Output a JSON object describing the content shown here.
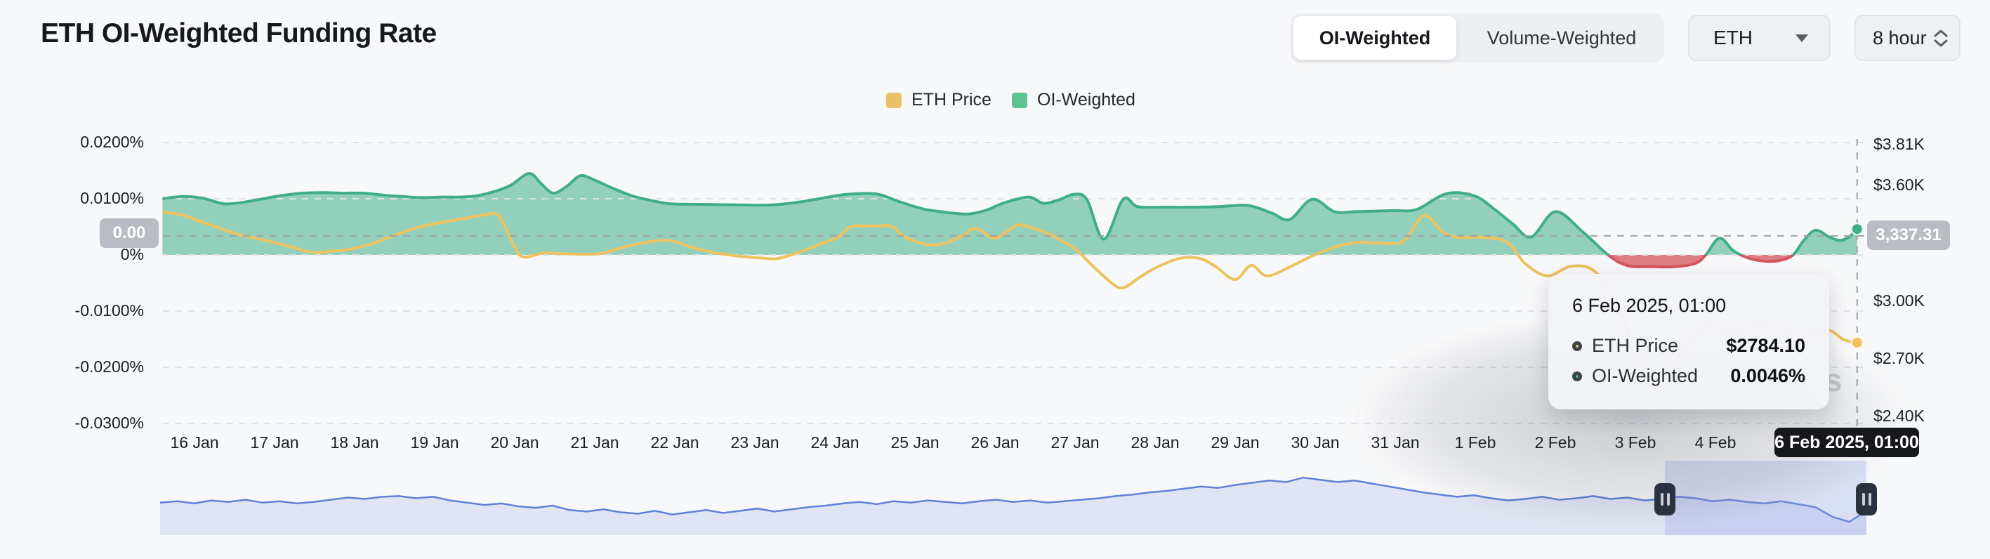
{
  "header": {
    "title": "ETH OI-Weighted Funding Rate"
  },
  "controls": {
    "mode_toggle": {
      "active_label": "OI-Weighted",
      "inactive_label": "Volume-Weighted"
    },
    "coin_select": {
      "value": "ETH"
    },
    "interval_select": {
      "value": "8 hour"
    }
  },
  "legend": [
    {
      "label": "ETH Price",
      "color": "#e9c164"
    },
    {
      "label": "OI-Weighted",
      "color": "#5ec391"
    }
  ],
  "axis_badges": {
    "left": "0.00",
    "right": "3,337.31"
  },
  "axis_pointer_label": "6 Feb 2025, 01:00",
  "tooltip": {
    "title": "6 Feb 2025, 01:00",
    "rows": [
      {
        "label": "ETH Price",
        "value": "$2784.10",
        "color": "#e9c164"
      },
      {
        "label": "OI-Weighted",
        "value": "0.0046%",
        "color": "#4db58d"
      }
    ]
  },
  "watermark_visible_text": "s",
  "chart_data": {
    "type": "area",
    "title": "ETH OI-Weighted Funding Rate",
    "legend_position": "top-center",
    "grid": "horizontal-dashed",
    "left_axis": {
      "unit": "%",
      "ticks": [
        "0.0200%",
        "0.0100%",
        "0%",
        "-0.0100%",
        "-0.0200%",
        "-0.0300%"
      ],
      "values": [
        0.02,
        0.01,
        0,
        -0.01,
        -0.02,
        -0.03
      ]
    },
    "right_axis": {
      "unit": "$",
      "ticks": [
        "$3.81K",
        "$3.60K",
        "$3.00K",
        "$2.70K",
        "$2.40K"
      ],
      "values": [
        3810,
        3600,
        3000,
        2700,
        2400
      ]
    },
    "x_ticks": [
      "16 Jan",
      "17 Jan",
      "18 Jan",
      "19 Jan",
      "20 Jan",
      "21 Jan",
      "22 Jan",
      "23 Jan",
      "24 Jan",
      "25 Jan",
      "26 Jan",
      "27 Jan",
      "28 Jan",
      "29 Jan",
      "30 Jan",
      "31 Jan",
      "1 Feb",
      "2 Feb",
      "3 Feb",
      "4 Feb"
    ],
    "series": [
      {
        "name": "OI-Weighted",
        "type": "area",
        "axis": "left",
        "unit": "%",
        "color_positive": "#3fae88",
        "fill_positive": "rgba(63,174,136,0.55)",
        "color_negative": "#d4575d",
        "fill_negative": "rgba(213,86,92,0.75)",
        "points": [
          [
            -0.4,
            0.01
          ],
          [
            -0.15,
            0.0104
          ],
          [
            0.1,
            0.0101
          ],
          [
            0.37,
            0.0091
          ],
          [
            0.62,
            0.0094
          ],
          [
            0.86,
            0.01
          ],
          [
            1.1,
            0.0106
          ],
          [
            1.35,
            0.011
          ],
          [
            1.6,
            0.0111
          ],
          [
            1.85,
            0.011
          ],
          [
            2.1,
            0.011
          ],
          [
            2.39,
            0.0106
          ],
          [
            2.6,
            0.0104
          ],
          [
            2.82,
            0.0102
          ],
          [
            3.1,
            0.0103
          ],
          [
            3.3,
            0.0103
          ],
          [
            3.52,
            0.0105
          ],
          [
            3.75,
            0.0113
          ],
          [
            3.95,
            0.0124
          ],
          [
            4.18,
            0.0145
          ],
          [
            4.33,
            0.0127
          ],
          [
            4.48,
            0.011
          ],
          [
            4.65,
            0.0122
          ],
          [
            4.82,
            0.0141
          ],
          [
            5.0,
            0.0133
          ],
          [
            5.22,
            0.0119
          ],
          [
            5.47,
            0.0105
          ],
          [
            5.7,
            0.0097
          ],
          [
            5.95,
            0.0091
          ],
          [
            6.34,
            0.009
          ],
          [
            6.8,
            0.0089
          ],
          [
            7.22,
            0.0089
          ],
          [
            7.6,
            0.0095
          ],
          [
            8.04,
            0.0106
          ],
          [
            8.3,
            0.0109
          ],
          [
            8.54,
            0.0108
          ],
          [
            8.8,
            0.0095
          ],
          [
            9.1,
            0.0082
          ],
          [
            9.32,
            0.0077
          ],
          [
            9.5,
            0.0074
          ],
          [
            9.68,
            0.0073
          ],
          [
            9.9,
            0.008
          ],
          [
            10.1,
            0.0092
          ],
          [
            10.42,
            0.0103
          ],
          [
            10.6,
            0.0092
          ],
          [
            10.8,
            0.0098
          ],
          [
            10.99,
            0.0108
          ],
          [
            11.15,
            0.0098
          ],
          [
            11.36,
            0.0028
          ],
          [
            11.6,
            0.0099
          ],
          [
            11.78,
            0.0086
          ],
          [
            12.1,
            0.0085
          ],
          [
            12.48,
            0.0085
          ],
          [
            12.8,
            0.0086
          ],
          [
            13.16,
            0.0088
          ],
          [
            13.45,
            0.0075
          ],
          [
            13.68,
            0.0063
          ],
          [
            13.96,
            0.0099
          ],
          [
            14.24,
            0.0077
          ],
          [
            14.5,
            0.0077
          ],
          [
            14.76,
            0.0078
          ],
          [
            15.0,
            0.0079
          ],
          [
            15.27,
            0.0081
          ],
          [
            15.64,
            0.0109
          ],
          [
            15.99,
            0.0105
          ],
          [
            16.25,
            0.008
          ],
          [
            16.47,
            0.0055
          ],
          [
            16.7,
            0.0032
          ],
          [
            17.0,
            0.0077
          ],
          [
            17.35,
            0.004
          ],
          [
            17.66,
            0.0
          ],
          [
            17.9,
            -0.0019
          ],
          [
            18.2,
            -0.0021
          ],
          [
            18.5,
            -0.0021
          ],
          [
            18.75,
            -0.0015
          ],
          [
            18.88,
            0.0
          ],
          [
            19.05,
            0.003
          ],
          [
            19.22,
            0.0008
          ],
          [
            19.4,
            -0.0005
          ],
          [
            19.6,
            -0.0011
          ],
          [
            19.8,
            -0.001
          ],
          [
            19.97,
            0.0
          ],
          [
            20.1,
            0.0025
          ],
          [
            20.25,
            0.0044
          ],
          [
            20.42,
            0.0032
          ],
          [
            20.55,
            0.0026
          ],
          [
            20.67,
            0.0032
          ],
          [
            20.77,
            0.0046
          ]
        ]
      },
      {
        "name": "ETH Price",
        "type": "line",
        "axis": "right",
        "unit": "$",
        "color": "#edc25e",
        "points": [
          [
            -0.4,
            3460
          ],
          [
            -0.15,
            3445
          ],
          [
            0.1,
            3408
          ],
          [
            0.3,
            3380
          ],
          [
            0.55,
            3345
          ],
          [
            0.8,
            3322
          ],
          [
            1.17,
            3285
          ],
          [
            1.47,
            3252
          ],
          [
            1.7,
            3258
          ],
          [
            1.9,
            3265
          ],
          [
            2.2,
            3295
          ],
          [
            2.5,
            3340
          ],
          [
            2.7,
            3370
          ],
          [
            2.9,
            3392
          ],
          [
            3.13,
            3410
          ],
          [
            3.4,
            3430
          ],
          [
            3.62,
            3445
          ],
          [
            3.8,
            3442
          ],
          [
            3.99,
            3285
          ],
          [
            4.11,
            3228
          ],
          [
            4.36,
            3248
          ],
          [
            4.6,
            3245
          ],
          [
            4.85,
            3242
          ],
          [
            5.1,
            3248
          ],
          [
            5.47,
            3290
          ],
          [
            5.9,
            3315
          ],
          [
            6.2,
            3279
          ],
          [
            6.5,
            3250
          ],
          [
            6.8,
            3232
          ],
          [
            7.1,
            3222
          ],
          [
            7.3,
            3221
          ],
          [
            7.6,
            3260
          ],
          [
            7.85,
            3300
          ],
          [
            8.04,
            3330
          ],
          [
            8.2,
            3385
          ],
          [
            8.45,
            3388
          ],
          [
            8.7,
            3387
          ],
          [
            8.84,
            3340
          ],
          [
            9.0,
            3310
          ],
          [
            9.15,
            3293
          ],
          [
            9.35,
            3296
          ],
          [
            9.6,
            3340
          ],
          [
            9.76,
            3377
          ],
          [
            10.0,
            3326
          ],
          [
            10.25,
            3388
          ],
          [
            10.37,
            3390
          ],
          [
            10.6,
            3360
          ],
          [
            10.75,
            3330
          ],
          [
            11.0,
            3270
          ],
          [
            11.2,
            3190
          ],
          [
            11.45,
            3095
          ],
          [
            11.6,
            3068
          ],
          [
            11.8,
            3120
          ],
          [
            12.0,
            3170
          ],
          [
            12.3,
            3220
          ],
          [
            12.55,
            3221
          ],
          [
            12.75,
            3180
          ],
          [
            13.0,
            3111
          ],
          [
            13.2,
            3184
          ],
          [
            13.4,
            3130
          ],
          [
            13.7,
            3180
          ],
          [
            14.0,
            3240
          ],
          [
            14.3,
            3286
          ],
          [
            14.55,
            3304
          ],
          [
            14.8,
            3300
          ],
          [
            15.1,
            3310
          ],
          [
            15.36,
            3442
          ],
          [
            15.6,
            3355
          ],
          [
            15.8,
            3330
          ],
          [
            16.1,
            3330
          ],
          [
            16.4,
            3304
          ],
          [
            16.62,
            3195
          ],
          [
            16.9,
            3130
          ],
          [
            17.2,
            3180
          ],
          [
            17.5,
            3150
          ],
          [
            17.8,
            2950
          ],
          [
            18.1,
            2650
          ],
          [
            18.3,
            2550
          ],
          [
            18.6,
            2750
          ],
          [
            18.9,
            2870
          ],
          [
            19.2,
            2830
          ],
          [
            19.5,
            2880
          ],
          [
            19.8,
            2860
          ],
          [
            20.1,
            2820
          ],
          [
            20.4,
            2850
          ],
          [
            20.6,
            2800
          ],
          [
            20.77,
            2784.1
          ]
        ]
      }
    ],
    "crosshair": {
      "day": 20.77,
      "timestamp_label": "6 Feb 2025, 01:00",
      "funding_pct": 0.0046,
      "price": 2784.1,
      "left_axis_badge": "0.00",
      "right_axis_badge": "3,337.31"
    },
    "navigator": {
      "window_fraction": [
        0.882,
        1.0
      ],
      "line_color": "#6080d8",
      "fill_color": "rgba(100,130,215,0.16)",
      "values": [
        0.44,
        0.46,
        0.43,
        0.47,
        0.45,
        0.48,
        0.44,
        0.46,
        0.43,
        0.45,
        0.48,
        0.51,
        0.49,
        0.52,
        0.53,
        0.5,
        0.52,
        0.47,
        0.44,
        0.41,
        0.43,
        0.39,
        0.37,
        0.4,
        0.34,
        0.32,
        0.35,
        0.31,
        0.29,
        0.33,
        0.28,
        0.31,
        0.34,
        0.3,
        0.33,
        0.36,
        0.32,
        0.35,
        0.38,
        0.4,
        0.43,
        0.45,
        0.42,
        0.46,
        0.44,
        0.47,
        0.45,
        0.43,
        0.46,
        0.48,
        0.45,
        0.47,
        0.44,
        0.46,
        0.48,
        0.5,
        0.53,
        0.55,
        0.58,
        0.6,
        0.63,
        0.66,
        0.64,
        0.68,
        0.71,
        0.74,
        0.72,
        0.78,
        0.75,
        0.72,
        0.74,
        0.7,
        0.66,
        0.62,
        0.58,
        0.55,
        0.52,
        0.54,
        0.5,
        0.47,
        0.49,
        0.52,
        0.48,
        0.5,
        0.53,
        0.49,
        0.51,
        0.47,
        0.49,
        0.52,
        0.5,
        0.46,
        0.48,
        0.45,
        0.43,
        0.46,
        0.42,
        0.38,
        0.25,
        0.18,
        0.33
      ]
    }
  }
}
